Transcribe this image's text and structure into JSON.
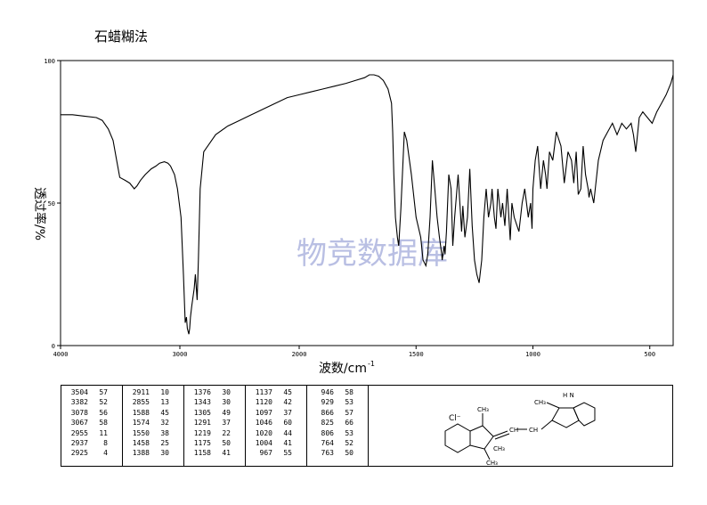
{
  "header": {
    "method": "石蜡糊法"
  },
  "watermark": "物竞数据库",
  "chart_data": {
    "type": "line",
    "title": "",
    "xlabel": "波数/cm",
    "xlabel_sup": "-1",
    "ylabel": "透过率/%",
    "xlim": [
      4000,
      400
    ],
    "ylim": [
      0,
      100
    ],
    "x_ticks": [
      4000,
      3000,
      2000,
      1500,
      1000,
      500
    ],
    "x_tick_labels": [
      "4000",
      "3000",
      "2000",
      "1500",
      "1000",
      "500"
    ],
    "y_ticks": [
      0,
      50,
      100
    ],
    "y_tick_labels": [
      "0",
      "50",
      "100"
    ],
    "grid": false,
    "series": [
      {
        "x": [
          4000,
          3900,
          3800,
          3700,
          3650,
          3600,
          3560,
          3530,
          3504,
          3460,
          3420,
          3382,
          3360,
          3330,
          3290,
          3240,
          3200,
          3170,
          3130,
          3100,
          3078,
          3067,
          3045,
          3020,
          2990,
          2970,
          2955,
          2945,
          2937,
          2925,
          2918,
          2911,
          2900,
          2880,
          2870,
          2855,
          2845,
          2830,
          2800,
          2750,
          2700,
          2600,
          2500,
          2400,
          2300,
          2200,
          2100,
          2000,
          1950,
          1900,
          1850,
          1800,
          1760,
          1720,
          1700,
          1680,
          1660,
          1640,
          1620,
          1605,
          1600,
          1595,
          1588,
          1580,
          1574,
          1565,
          1550,
          1540,
          1520,
          1500,
          1480,
          1470,
          1458,
          1450,
          1440,
          1430,
          1420,
          1410,
          1400,
          1390,
          1388,
          1380,
          1376,
          1370,
          1360,
          1350,
          1343,
          1335,
          1320,
          1305,
          1300,
          1291,
          1280,
          1270,
          1260,
          1250,
          1240,
          1230,
          1219,
          1210,
          1200,
          1190,
          1180,
          1175,
          1165,
          1158,
          1150,
          1137,
          1130,
          1120,
          1110,
          1097,
          1090,
          1080,
          1060,
          1046,
          1035,
          1020,
          1010,
          1004,
          1000,
          990,
          980,
          967,
          955,
          946,
          940,
          929,
          915,
          900,
          880,
          866,
          850,
          835,
          825,
          815,
          806,
          795,
          785,
          775,
          764,
          760,
          753,
          740,
          720,
          700,
          680,
          660,
          640,
          620,
          600,
          580,
          570,
          560,
          545,
          530,
          510,
          490,
          470,
          450,
          430,
          410,
          400
        ],
        "y": [
          81,
          81,
          80.5,
          80,
          79,
          76,
          72,
          65,
          59,
          58,
          57,
          55,
          56,
          58,
          60,
          62,
          63,
          64,
          64.5,
          64,
          63,
          62,
          60,
          55,
          45,
          25,
          8,
          10,
          6,
          4,
          6,
          10,
          14,
          20,
          25,
          16,
          30,
          55,
          68,
          71,
          74,
          77,
          79,
          81,
          83,
          85,
          87,
          88,
          89,
          90,
          91,
          92,
          93,
          94,
          95,
          95,
          94.5,
          93,
          90,
          85,
          75,
          60,
          45,
          38,
          35,
          48,
          75,
          72,
          60,
          45,
          38,
          30,
          28,
          32,
          45,
          65,
          55,
          45,
          38,
          32,
          30,
          35,
          32,
          40,
          60,
          55,
          35,
          45,
          60,
          40,
          49,
          38,
          45,
          62,
          42,
          30,
          25,
          22,
          30,
          45,
          55,
          45,
          50,
          55,
          45,
          41,
          55,
          45,
          50,
          42,
          55,
          37,
          50,
          45,
          40,
          50,
          55,
          45,
          50,
          41,
          55,
          65,
          70,
          55,
          65,
          60,
          55,
          68,
          65,
          75,
          70,
          57,
          68,
          65,
          57,
          68,
          53,
          55,
          70,
          60,
          55,
          52,
          55,
          50,
          65,
          72,
          75,
          78,
          74,
          78,
          76,
          78,
          74,
          68,
          80,
          82,
          80,
          78,
          82,
          85,
          88,
          92,
          95
        ]
      }
    ],
    "annotations": [],
    "peak_table": [
      [
        [
          3504,
          57
        ],
        [
          3382,
          52
        ],
        [
          3078,
          56
        ],
        [
          3067,
          58
        ],
        [
          2955,
          11
        ],
        [
          2937,
          8
        ],
        [
          2925,
          4
        ]
      ],
      [
        [
          2911,
          10
        ],
        [
          2855,
          13
        ],
        [
          1588,
          45
        ],
        [
          1574,
          32
        ],
        [
          1550,
          38
        ],
        [
          1458,
          25
        ],
        [
          1388,
          30
        ]
      ],
      [
        [
          1376,
          30
        ],
        [
          1343,
          30
        ],
        [
          1305,
          49
        ],
        [
          1291,
          37
        ],
        [
          1219,
          22
        ],
        [
          1175,
          50
        ],
        [
          1158,
          41
        ]
      ],
      [
        [
          1137,
          45
        ],
        [
          1120,
          42
        ],
        [
          1097,
          37
        ],
        [
          1046,
          60
        ],
        [
          1020,
          44
        ],
        [
          1004,
          41
        ],
        [
          967,
          55
        ]
      ],
      [
        [
          946,
          58
        ],
        [
          929,
          53
        ],
        [
          866,
          57
        ],
        [
          825,
          66
        ],
        [
          806,
          53
        ],
        [
          764,
          52
        ],
        [
          763,
          50
        ]
      ]
    ],
    "structure_labels": {
      "anion": "Cl⁻",
      "n_methyl": "CH₃",
      "gem_methyl_upper": "CH₃",
      "gem_methyl_lower": "CH₃",
      "vinyl_left": "CH",
      "vinyl_right": "CH",
      "indole_methyl": "CH₃",
      "indole_nh": "H\nN"
    }
  },
  "colors": {
    "line": "#000000",
    "watermark": "#b9bfe3"
  }
}
